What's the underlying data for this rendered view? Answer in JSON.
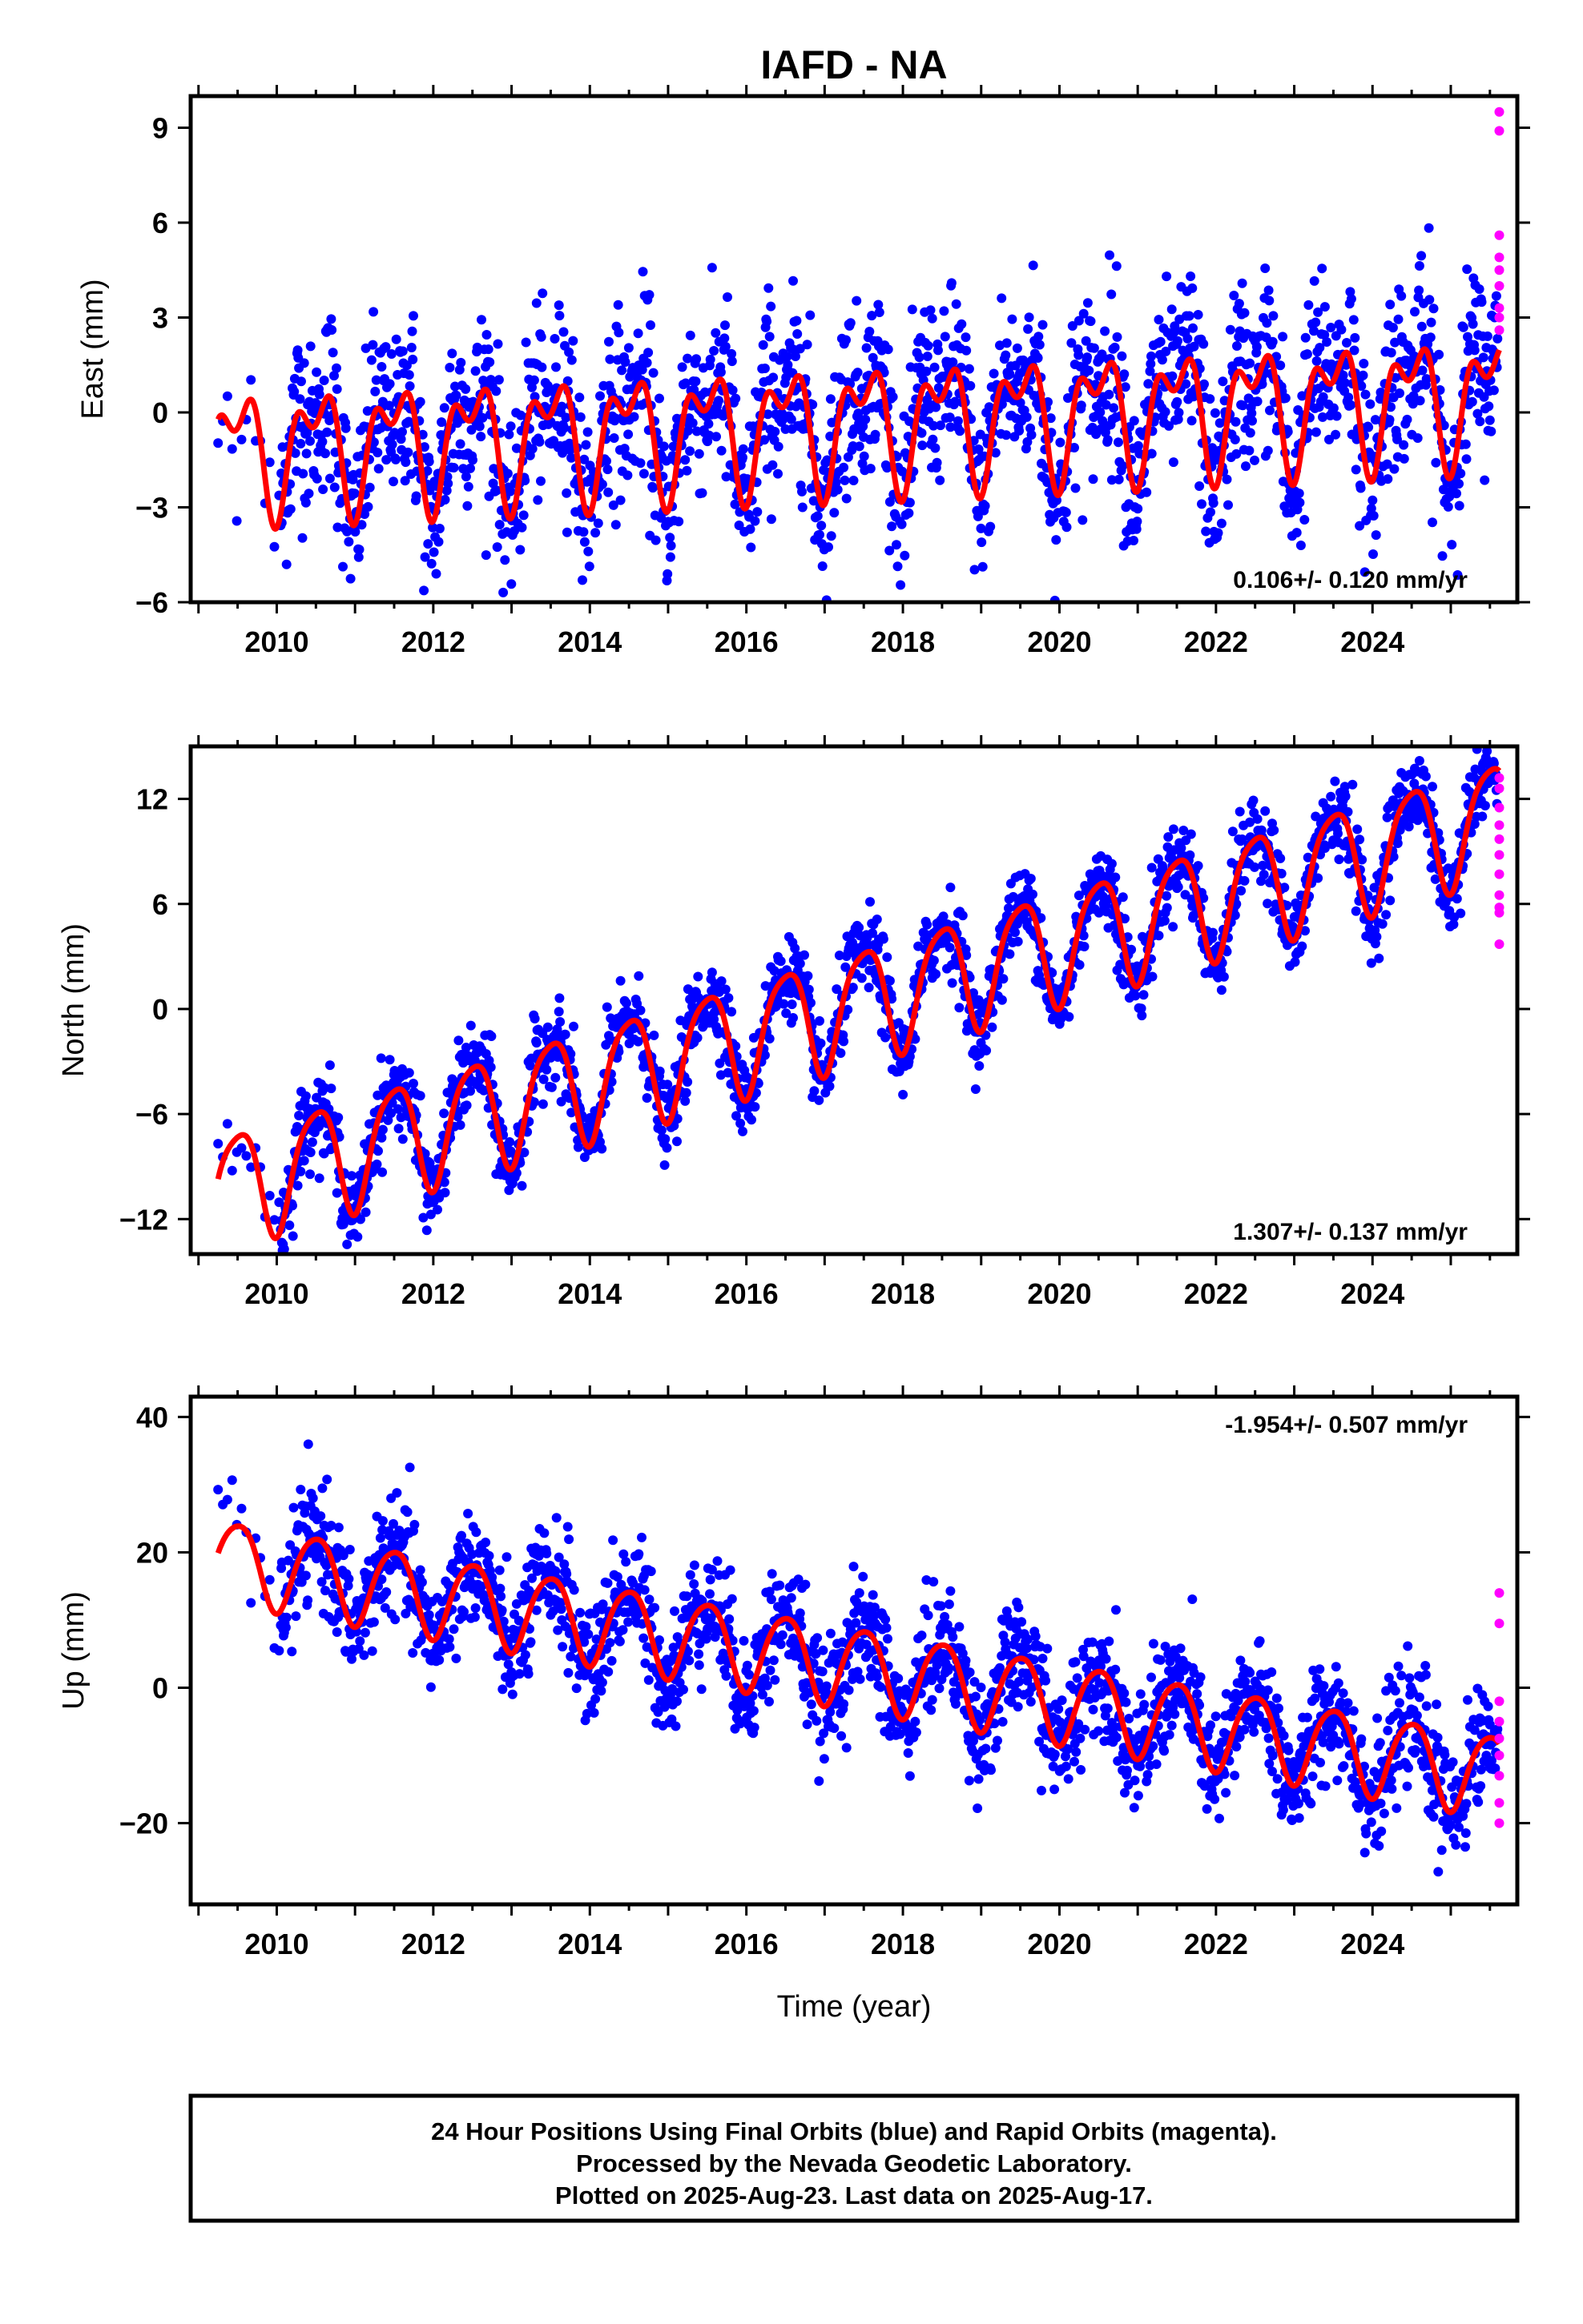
{
  "title": "IAFD - NA",
  "xlabel": "Time (year)",
  "colors": {
    "final": "#0000ff",
    "rapid": "#ff00ff",
    "model": "#ff0000"
  },
  "footer": {
    "line1": "24 Hour Positions Using Final Orbits (blue) and Rapid Orbits (magenta).",
    "line2": "Processed by the Nevada Geodetic Laboratory.",
    "line3": "Plotted on 2025-Aug-23. Last data on 2025-Aug-17."
  },
  "chart_data": [
    {
      "type": "scatter",
      "ylabel": "East (mm)",
      "rate": "0.106+/- 0.120 mm/yr",
      "xlim": [
        2008.9,
        2025.85
      ],
      "ylim": [
        -6,
        10
      ],
      "yticks": [
        -6,
        -3,
        0,
        3,
        6,
        9
      ],
      "xticks": [
        2010,
        2012,
        2014,
        2016,
        2018,
        2020,
        2022,
        2024
      ],
      "model": {
        "trend": 0.106,
        "offset": -0.3,
        "annual": 1.6,
        "semiannual": 1.0,
        "scatter": 1.3
      },
      "rapid_points": [
        9.5,
        8.9,
        5.6,
        4.9,
        4.5,
        4.0,
        3.3,
        3.0,
        2.6
      ]
    },
    {
      "type": "scatter",
      "ylabel": "North (mm)",
      "rate": "1.307+/- 0.137 mm/yr",
      "xlim": [
        2008.9,
        2025.85
      ],
      "ylim": [
        -14,
        15
      ],
      "yticks": [
        -12,
        -6,
        0,
        6,
        12
      ],
      "xticks": [
        2010,
        2012,
        2014,
        2016,
        2018,
        2020,
        2022,
        2024
      ],
      "model": {
        "trend": 1.307,
        "offset": 0.5,
        "annual": 3.2,
        "semiannual": 0.6,
        "scatter": 1.1
      },
      "rapid_points": [
        13.2,
        12.6,
        11.5,
        10.5,
        9.7,
        8.8,
        7.7,
        6.5,
        5.8,
        5.5,
        3.7
      ]
    },
    {
      "type": "scatter",
      "ylabel": "Up (mm)",
      "rate": "-1.954+/- 0.507 mm/yr",
      "xlim": [
        2008.9,
        2025.85
      ],
      "ylim": [
        -32,
        43
      ],
      "yticks": [
        -20,
        0,
        20,
        40
      ],
      "xticks": [
        2010,
        2012,
        2014,
        2016,
        2018,
        2020,
        2022,
        2024
      ],
      "model": {
        "trend": -1.954,
        "offset": 3.0,
        "annual": 6.0,
        "semiannual": 0.8,
        "scatter": 4.0
      },
      "rapid_points": [
        14.0,
        9.5,
        -2.0,
        -5.0,
        -7.5,
        -10.0,
        -13.0,
        -17.0,
        -20.0
      ]
    }
  ]
}
